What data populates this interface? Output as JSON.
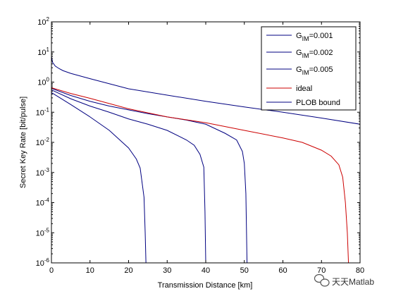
{
  "chart_data": {
    "type": "line",
    "title": "",
    "xlabel": "Transmission Distance [km]",
    "ylabel": "Secret Key Rate [bit/pulse]",
    "xlim": [
      0,
      80
    ],
    "ylim": [
      1e-06,
      100
    ],
    "yscale": "log",
    "grid": false,
    "legend_position": "top-right",
    "x_ticks": [
      0,
      10,
      20,
      30,
      40,
      50,
      60,
      70,
      80
    ],
    "x_tick_labels": [
      "0",
      "10",
      "20",
      "30",
      "40",
      "50",
      "60",
      "70",
      "80"
    ],
    "y_ticks": [
      1e-06,
      1e-05,
      0.0001,
      0.001,
      0.01,
      0.1,
      1,
      10,
      100
    ],
    "y_tick_labels": [
      {
        "base": "10",
        "exp": "-6"
      },
      {
        "base": "10",
        "exp": "-5"
      },
      {
        "base": "10",
        "exp": "-4"
      },
      {
        "base": "10",
        "exp": "-3"
      },
      {
        "base": "10",
        "exp": "-2"
      },
      {
        "base": "10",
        "exp": "-1"
      },
      {
        "base": "10",
        "exp": "0"
      },
      {
        "base": "10",
        "exp": "1"
      },
      {
        "base": "10",
        "exp": "2"
      }
    ],
    "legend": [
      {
        "prefix": "G",
        "sub": "IM",
        "suffix": "=0.001",
        "color": "#000080"
      },
      {
        "prefix": "G",
        "sub": "IM",
        "suffix": "=0.002",
        "color": "#000080"
      },
      {
        "prefix": "G",
        "sub": "IM",
        "suffix": "=0.005",
        "color": "#000080"
      },
      {
        "prefix": "ideal",
        "sub": "",
        "suffix": "",
        "color": "#cc0000"
      },
      {
        "prefix": "PLOB bound",
        "sub": "",
        "suffix": "",
        "color": "#000080"
      }
    ],
    "series": [
      {
        "color": "#000080",
        "x": [
          0,
          5,
          10,
          15,
          20,
          22,
          23,
          24,
          24.3,
          24.5
        ],
        "y": [
          0.45,
          0.18,
          0.07,
          0.025,
          0.0065,
          0.0028,
          0.0014,
          0.00015,
          1e-05,
          1e-06
        ]
      },
      {
        "color": "#000080",
        "x": [
          0,
          5,
          10,
          15,
          20,
          25,
          30,
          35,
          37,
          38.5,
          39.5,
          39.8,
          40
        ],
        "y": [
          0.55,
          0.28,
          0.16,
          0.1,
          0.06,
          0.04,
          0.025,
          0.012,
          0.008,
          0.004,
          0.0015,
          5e-05,
          1e-06
        ]
      },
      {
        "color": "#000080",
        "x": [
          0,
          5,
          10,
          15,
          20,
          25,
          30,
          35,
          40,
          45,
          48,
          49.5,
          50,
          50.4,
          50.7
        ],
        "y": [
          0.62,
          0.36,
          0.23,
          0.16,
          0.12,
          0.09,
          0.07,
          0.055,
          0.04,
          0.02,
          0.012,
          0.005,
          0.002,
          0.0002,
          1e-06
        ]
      },
      {
        "color": "#cc0000",
        "x": [
          0,
          5,
          10,
          20,
          30,
          40,
          50,
          60,
          65,
          70,
          72.5,
          74.5,
          75.5,
          76.2,
          76.7,
          77
        ],
        "y": [
          0.65,
          0.42,
          0.29,
          0.13,
          0.07,
          0.045,
          0.025,
          0.014,
          0.01,
          0.0055,
          0.0035,
          0.0018,
          0.0007,
          0.0001,
          1e-05,
          1e-06
        ]
      },
      {
        "color": "#000080",
        "x": [
          0,
          0.3,
          1,
          2,
          3,
          5,
          10,
          20,
          30,
          40,
          50,
          60,
          70,
          80
        ],
        "y": [
          7,
          4.5,
          3.4,
          2.8,
          2.4,
          1.95,
          1.3,
          0.6,
          0.37,
          0.23,
          0.15,
          0.1,
          0.064,
          0.04
        ]
      }
    ]
  },
  "watermark": {
    "text": "天天Matlab",
    "icon": "wechat-icon"
  }
}
